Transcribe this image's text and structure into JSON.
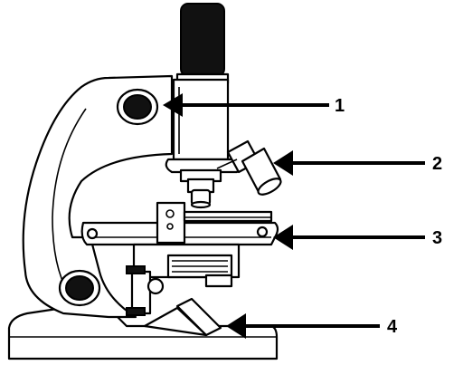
{
  "labels": [
    {
      "id": "1",
      "text": "1"
    },
    {
      "id": "2",
      "text": "2"
    },
    {
      "id": "3",
      "text": "3"
    },
    {
      "id": "4",
      "text": "4"
    }
  ]
}
